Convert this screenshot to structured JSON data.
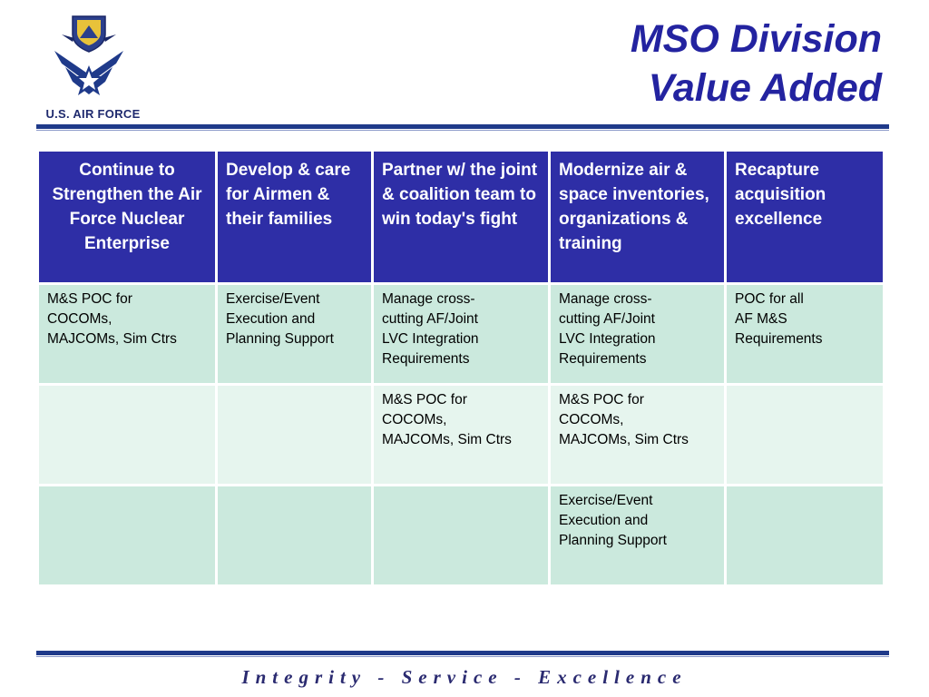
{
  "header": {
    "title_line1": "MSO Division",
    "title_line2": "Value Added",
    "logo_text": "U.S. AIR FORCE"
  },
  "table": {
    "headers": [
      "Continue to Strengthen the Air Force Nuclear Enterprise",
      "Develop & care for Airmen & their families",
      "Partner w/ the joint & coalition team to win today's fight",
      "Modernize air & space inventories, organizations & training",
      "Recapture acquisition excellence"
    ],
    "rows": [
      [
        "M&S POC for\nCOCOMs,\nMAJCOMs, Sim Ctrs",
        "Exercise/Event\nExecution and\nPlanning Support",
        "Manage cross-\ncutting AF/Joint\nLVC Integration\nRequirements",
        "Manage cross-\ncutting AF/Joint\nLVC Integration\nRequirements",
        "POC for all\nAF M&S\nRequirements"
      ],
      [
        "",
        "",
        "M&S POC for\nCOCOMs,\nMAJCOMs, Sim Ctrs",
        "M&S POC for\nCOCOMs,\nMAJCOMs, Sim Ctrs",
        ""
      ],
      [
        "",
        "",
        "",
        "Exercise/Event\nExecution and\nPlanning Support",
        ""
      ]
    ]
  },
  "footer": {
    "motto": "Integrity - Service - Excellence"
  },
  "colors": {
    "title": "#2323a0",
    "header_bg": "#2e2ea6",
    "row_dark": "#cbe9dd",
    "row_light": "#e6f5ee",
    "rule": "#1f3a8a"
  },
  "icons": [
    "air-force-wing-emblem-icon",
    "shield-crest-icon"
  ]
}
